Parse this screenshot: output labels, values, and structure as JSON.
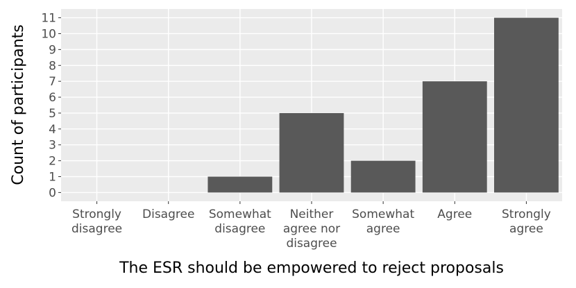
{
  "chart_data": {
    "type": "bar",
    "x_label": "The ESR should be empowered to reject proposals",
    "y_label": "Count of participants",
    "categories": [
      "Strongly\ndisagree",
      "Disagree",
      "Somewhat\ndisagree",
      "Neither\nagree nor\ndisagree",
      "Somewhat\nagree",
      "Agree",
      "Strongly\nagree"
    ],
    "values": [
      0,
      0,
      1,
      5,
      2,
      7,
      11
    ],
    "color": "#595959",
    "ylim": [
      -0.55,
      11.55
    ],
    "yticks": [
      0,
      1,
      2,
      3,
      4,
      5,
      6,
      7,
      8,
      9,
      10,
      11
    ],
    "grid": true
  }
}
